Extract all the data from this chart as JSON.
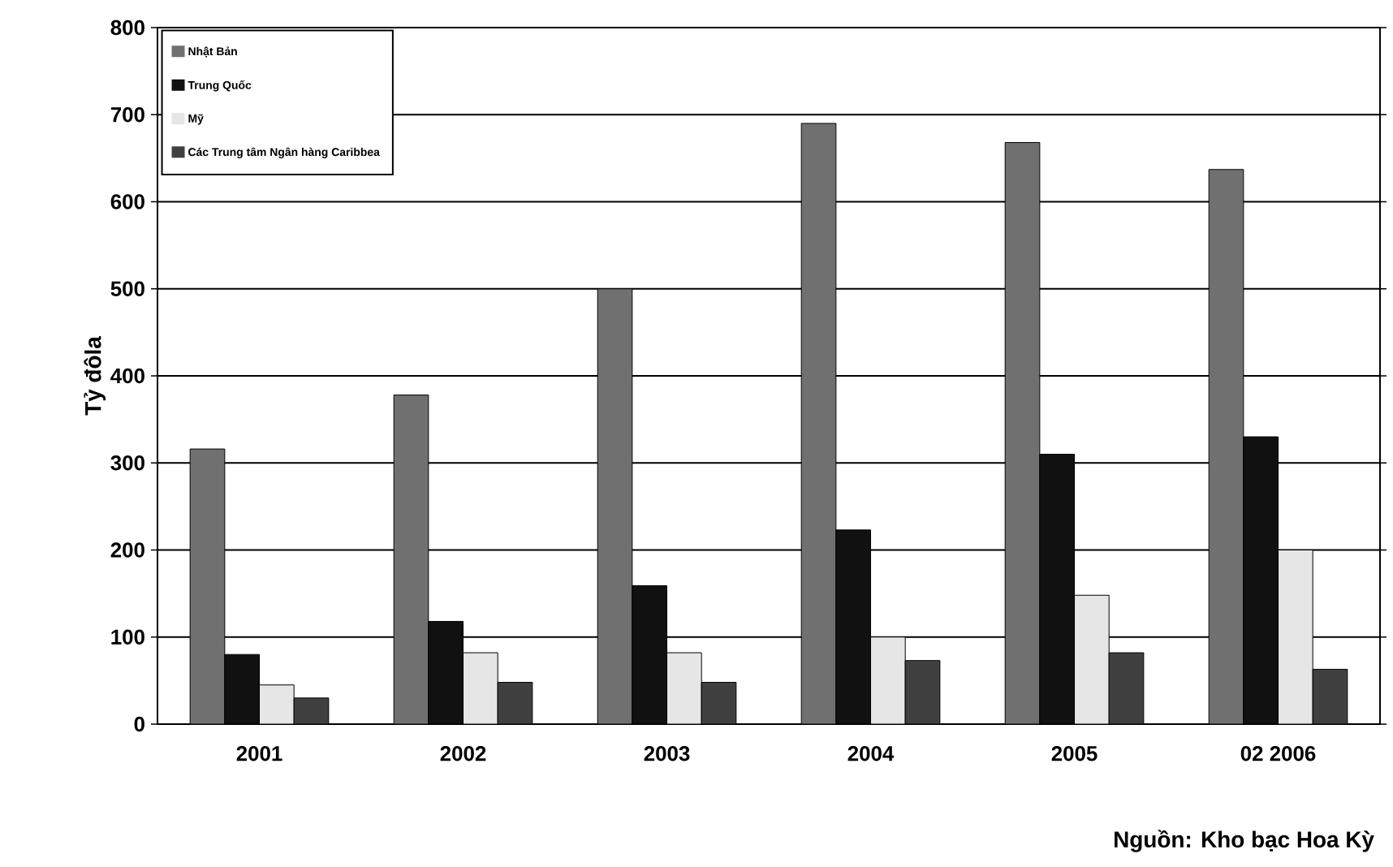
{
  "chart_data": {
    "type": "bar",
    "ylabel": "Tỷ đôla",
    "categories": [
      "2001",
      "2002",
      "2003",
      "2004",
      "2005",
      "02 2006"
    ],
    "series": [
      {
        "name": "Nhật Bản",
        "color": "#707070",
        "values": [
          316,
          378,
          500,
          690,
          668,
          637
        ]
      },
      {
        "name": "Trung Quốc",
        "color": "#111111",
        "values": [
          80,
          118,
          159,
          223,
          310,
          330
        ]
      },
      {
        "name": "Mỹ",
        "color": "#e6e6e6",
        "values": [
          45,
          82,
          82,
          100,
          148,
          200
        ]
      },
      {
        "name": "Các Trung tâm Ngân hàng Caribbea",
        "color": "#404040",
        "values": [
          30,
          48,
          48,
          73,
          82,
          63
        ]
      }
    ],
    "ylim": [
      0,
      800
    ],
    "yticks": [
      0,
      100,
      200,
      300,
      400,
      500,
      600,
      700,
      800
    ],
    "grid": "y",
    "legend": "top left",
    "annotations": [
      "Nguồn: Kho bạc Hoa Kỳ"
    ]
  }
}
